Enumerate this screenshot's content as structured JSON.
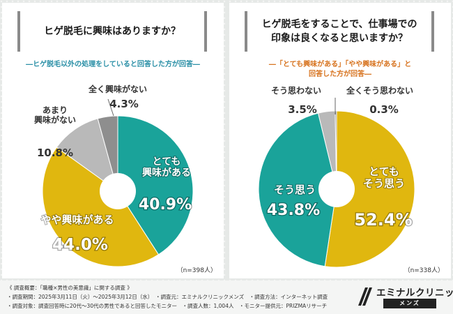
{
  "left": {
    "title_line1": "ヒゲ脱毛に興味はありますか？",
    "subnote": "―ヒゲ脱毛以外の処理をしていると回答した方が回答―",
    "n_label": "（n=398人）",
    "labels": [
      {
        "name_lines": [
          "とても",
          "興味がある"
        ],
        "value": "40.9%"
      },
      {
        "name_lines": [
          "やや興味がある"
        ],
        "value": "44.0%"
      },
      {
        "name_lines": [
          "あまり",
          "興味がない"
        ],
        "value": "10.8%"
      },
      {
        "name_lines": [
          "全く興味がない"
        ],
        "value": "4.3%"
      }
    ]
  },
  "right": {
    "title_line1": "ヒゲ脱毛をすることで、仕事場での",
    "title_line2": "印象は良くなると思いますか？",
    "subnote_line1": "―「とても興味がある」「やや興味がある」と",
    "subnote_line2": "回答した方が回答―",
    "n_label": "（n=338人）",
    "labels": [
      {
        "name_lines": [
          "とても",
          "そう思う"
        ],
        "value": "52.4%"
      },
      {
        "name_lines": [
          "そう思う"
        ],
        "value": "43.8%"
      },
      {
        "name_lines": [
          "そう思わない"
        ],
        "value": "3.5%"
      },
      {
        "name_lines": [
          "全くそう思わない"
        ],
        "value": "0.3%"
      }
    ]
  },
  "footer": {
    "line1": "《 調査概要：「職種×男性の美意識」に関する調査 》",
    "line2": "・調査期間：2025年3月11日（火）～2025年3月12日（水）　・調査元：エミナルクリニックメンズ　・調査方法：インターネット調査",
    "line3": "・調査対象：調査回答時に20代～30代の男性であると回答したモニター　・調査人数：1,004人　・モニター提供元：PRIZMAリサーチ"
  },
  "logo": {
    "name": "エミナルクリニック",
    "sub": "メンズ"
  },
  "chart_data": [
    {
      "type": "pie",
      "title": "ヒゲ脱毛に興味はありますか？",
      "categories": [
        "とても興味がある",
        "やや興味がある",
        "あまり興味がない",
        "全く興味がない"
      ],
      "values": [
        40.9,
        44.0,
        10.8,
        4.3
      ],
      "colors": [
        "#1aa39a",
        "#e0b70f",
        "#b9b9b9",
        "#8e8e8e"
      ]
    },
    {
      "type": "pie",
      "title": "ヒゲ脱毛をすることで、仕事場での印象は良くなると思いますか？",
      "categories": [
        "とてもそう思う",
        "そう思う",
        "そう思わない",
        "全くそう思わない"
      ],
      "values": [
        52.4,
        43.8,
        3.5,
        0.3
      ],
      "colors": [
        "#e0b70f",
        "#1aa39a",
        "#b9b9b9",
        "#8e8e8e"
      ]
    }
  ]
}
